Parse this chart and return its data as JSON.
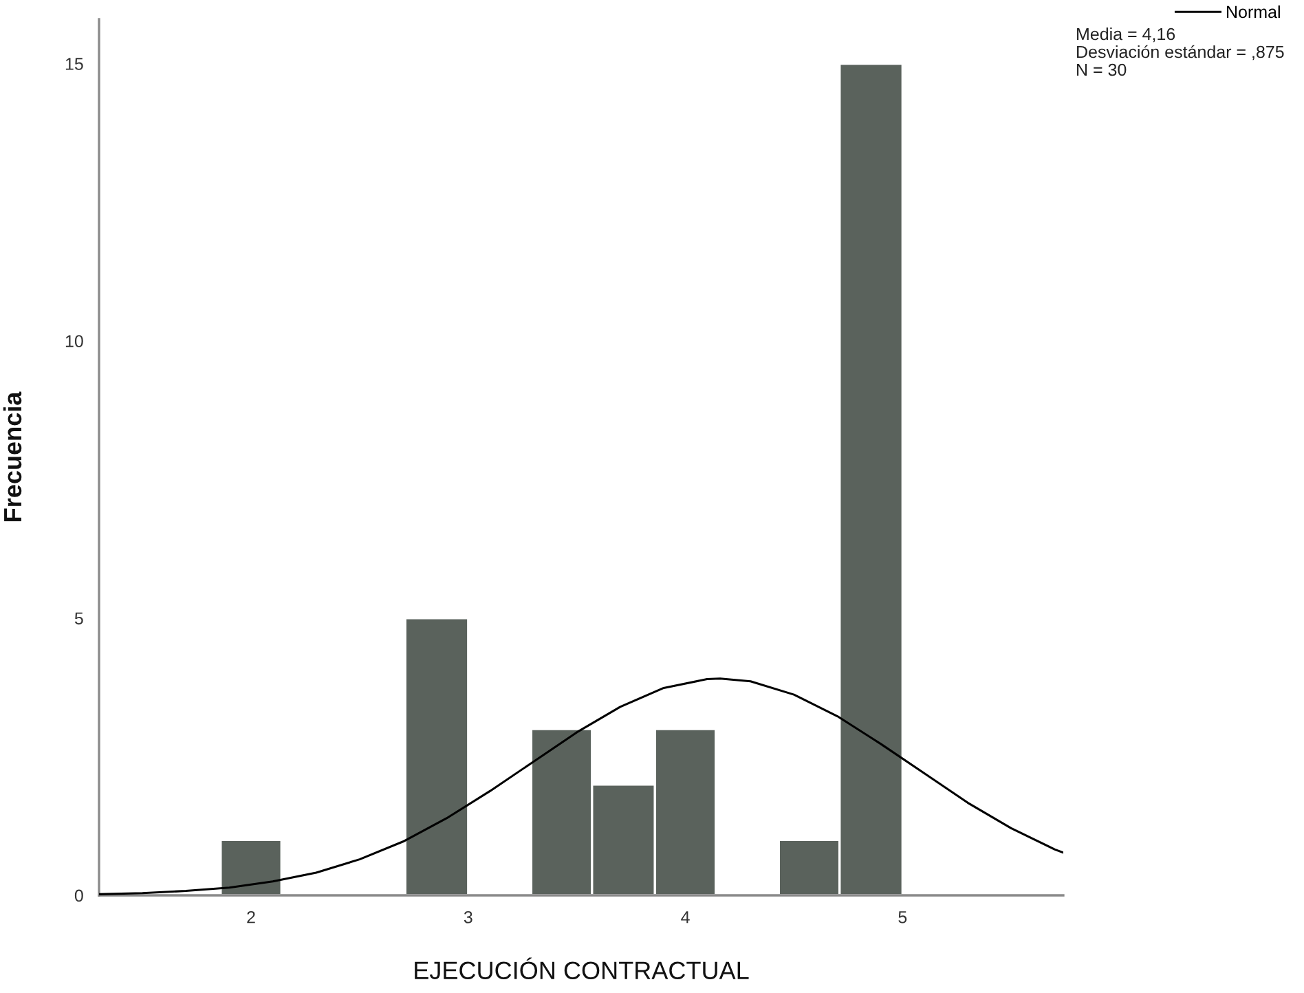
{
  "chart_data": {
    "type": "histogram",
    "xlabel": "EJECUCIÓN CONTRACTUAL",
    "ylabel": "Frecuencia",
    "series": [
      {
        "type": "histogram",
        "color": "#5a625c",
        "bins": [
          1.86,
          2.14,
          2.71,
          3.0,
          3.29,
          3.57,
          3.86,
          4.14,
          4.43,
          4.71,
          5.0
        ],
        "values": [
          1,
          0,
          5,
          0,
          3,
          2,
          3,
          0,
          1,
          15
        ]
      },
      {
        "type": "line",
        "name": "Normal",
        "color": "#000000",
        "x": [
          1.3,
          1.5,
          1.7,
          1.9,
          2.1,
          2.3,
          2.5,
          2.7,
          2.9,
          3.1,
          3.3,
          3.5,
          3.7,
          3.9,
          4.1,
          4.16,
          4.3,
          4.5,
          4.7,
          4.9,
          5.1,
          5.3,
          5.5,
          5.7,
          5.74
        ],
        "values": [
          0.02,
          0.04,
          0.08,
          0.14,
          0.25,
          0.41,
          0.65,
          0.97,
          1.39,
          1.88,
          2.41,
          2.94,
          3.4,
          3.74,
          3.9,
          3.91,
          3.86,
          3.62,
          3.23,
          2.73,
          2.2,
          1.67,
          1.21,
          0.83,
          0.77
        ]
      }
    ],
    "xlim": [
      1.3,
      5.74
    ],
    "ylim": [
      0,
      15.8
    ],
    "xticks": [
      2,
      3,
      4,
      5
    ],
    "yticks": [
      0,
      5,
      10,
      15
    ],
    "legend": "top right",
    "annotations": [
      "Media = 4,16",
      "Desviación estándar = ,875",
      "N = 30"
    ]
  }
}
